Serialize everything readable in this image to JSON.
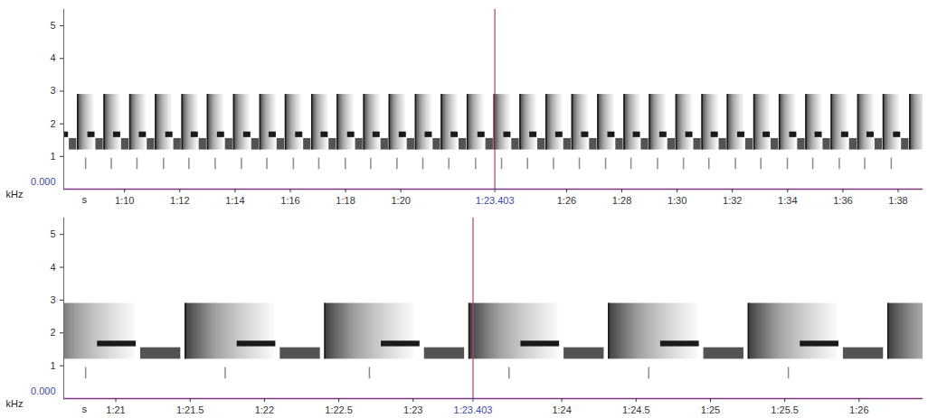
{
  "chart_data": [
    {
      "type": "spectrogram",
      "x_label": "s",
      "y_label": "kHz",
      "color": "#1a1a1a",
      "xlim": [
        67.8,
        98.9
      ],
      "ylim": [
        0,
        5.5
      ],
      "xticks": [
        {
          "value": 70,
          "label": "1:10"
        },
        {
          "value": 72,
          "label": "1:12"
        },
        {
          "value": 74,
          "label": "1:14"
        },
        {
          "value": 76,
          "label": "1:16"
        },
        {
          "value": 78,
          "label": "1:18"
        },
        {
          "value": 80,
          "label": "1:20"
        },
        {
          "value": 86,
          "label": "1:26"
        },
        {
          "value": 88,
          "label": "1:28"
        },
        {
          "value": 90,
          "label": "1:30"
        },
        {
          "value": 92,
          "label": "1:32"
        },
        {
          "value": 94,
          "label": "1:34"
        },
        {
          "value": 96,
          "label": "1:36"
        },
        {
          "value": 98,
          "label": "1:38"
        }
      ],
      "yticks": [
        {
          "value": 0,
          "label": "0.000"
        },
        1,
        2,
        3,
        4,
        5
      ],
      "cursor": {
        "value": 83.403,
        "label": "1:23.403"
      },
      "phrase_times": [
        68.3,
        69.26,
        70.19,
        71.12,
        72.08,
        73.0,
        73.95,
        74.9,
        75.82,
        76.78,
        77.7,
        78.66,
        79.58,
        80.53,
        81.467,
        82.406,
        83.376,
        84.315,
        85.255,
        86.194,
        87.13,
        88.08,
        89.0,
        89.96,
        90.9,
        91.82,
        92.78,
        93.7,
        94.66,
        95.58,
        96.54,
        97.46,
        98.42
      ],
      "phrase_shape": [
        {
          "kind": "click",
          "t": [
            -0.67,
            -0.66
          ],
          "f": [
            0.6,
            0.95
          ]
        },
        {
          "kind": "tone",
          "t": [
            -0.59,
            -0.33
          ],
          "f": [
            1.58,
            1.75
          ]
        },
        {
          "kind": "buzz",
          "t": [
            -0.3,
            -0.03
          ],
          "f": [
            1.2,
            1.55
          ]
        },
        {
          "kind": "fan",
          "t": [
            0,
            0.6
          ],
          "f": [
            1.2,
            2.9
          ]
        }
      ]
    },
    {
      "type": "spectrogram",
      "x_label": "s",
      "y_label": "kHz",
      "color": "#1a1a1a",
      "xlim": [
        80.65,
        86.43
      ],
      "ylim": [
        0,
        5.5
      ],
      "xticks": [
        {
          "value": 81,
          "label": "1:21"
        },
        {
          "value": 81.5,
          "label": "1:21.5"
        },
        {
          "value": 82,
          "label": "1:22"
        },
        {
          "value": 82.5,
          "label": "1:22.5"
        },
        {
          "value": 83,
          "label": "1:23"
        },
        {
          "value": 84,
          "label": "1:24"
        },
        {
          "value": 84.5,
          "label": "1:24.5"
        },
        {
          "value": 85,
          "label": "1:25"
        },
        {
          "value": 85.5,
          "label": "1:25.5"
        },
        {
          "value": 86,
          "label": "1:26"
        }
      ],
      "yticks": [
        {
          "value": 0,
          "label": "0.000"
        },
        1,
        2,
        3,
        4,
        5
      ],
      "cursor": {
        "value": 83.403,
        "label": "1:23.403"
      },
      "phrase_times": [
        80.53,
        81.467,
        82.406,
        83.376,
        84.315,
        85.255,
        86.194
      ],
      "phrase_shape": [
        {
          "kind": "click",
          "t": [
            -0.67,
            -0.66
          ],
          "f": [
            0.6,
            0.95
          ]
        },
        {
          "kind": "tone",
          "t": [
            -0.59,
            -0.33
          ],
          "f": [
            1.58,
            1.75
          ]
        },
        {
          "kind": "buzz",
          "t": [
            -0.3,
            -0.03
          ],
          "f": [
            1.2,
            1.55
          ]
        },
        {
          "kind": "fan",
          "t": [
            0,
            0.6
          ],
          "f": [
            1.2,
            2.9
          ]
        }
      ]
    }
  ]
}
